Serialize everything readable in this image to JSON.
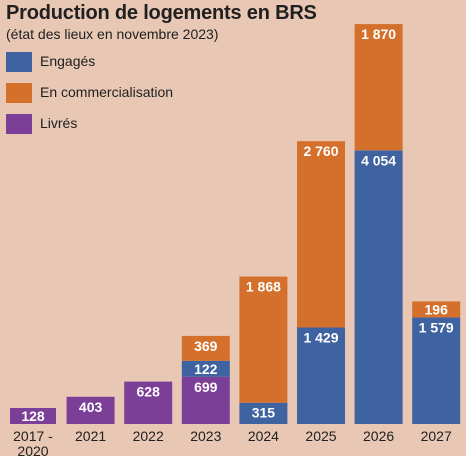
{
  "title": "Production de logements en BRS",
  "subtitle": "(état des lieux en novembre 2023)",
  "colors": {
    "background": "#e8c8b4",
    "livres": "#7b3f98",
    "engages": "#3f62a0",
    "commercialisation": "#d4702b",
    "text": "#202020",
    "bar_label": "#ffffff"
  },
  "legend": [
    {
      "label": "Engagés",
      "color": "#3f62a0"
    },
    {
      "label": "En commercialisation",
      "color": "#d4702b"
    },
    {
      "label": "Livrés",
      "color": "#7b3f98"
    }
  ],
  "chart_data": {
    "type": "bar",
    "stacked": true,
    "title": "Production de logements en BRS",
    "subtitle": "(état des lieux en novembre 2023)",
    "categories": [
      "2017 - 2020",
      "2021",
      "2022",
      "2023",
      "2024",
      "2025",
      "2026",
      "2027"
    ],
    "series": [
      {
        "name": "Livrés",
        "color": "#7b3f98",
        "values": [
          128,
          403,
          628,
          699,
          0,
          0,
          0,
          0
        ]
      },
      {
        "name": "Engagés",
        "color": "#3f62a0",
        "values": [
          0,
          0,
          0,
          122,
          315,
          1429,
          4054,
          1579
        ]
      },
      {
        "name": "En commercialisation",
        "color": "#d4702b",
        "values": [
          0,
          0,
          0,
          369,
          1868,
          2760,
          1870,
          196
        ]
      }
    ],
    "data_labels": [
      [
        "128"
      ],
      [
        "403"
      ],
      [
        "628"
      ],
      [
        "699",
        "122",
        "369"
      ],
      [
        "315",
        "1 868"
      ],
      [
        "1 429",
        "2 760"
      ],
      [
        "4 054",
        "1 870"
      ],
      [
        "1 579",
        "196"
      ]
    ],
    "ylim": [
      0,
      6000
    ],
    "grid": false,
    "legend_position": "top-left",
    "xlabel": "",
    "ylabel": ""
  }
}
